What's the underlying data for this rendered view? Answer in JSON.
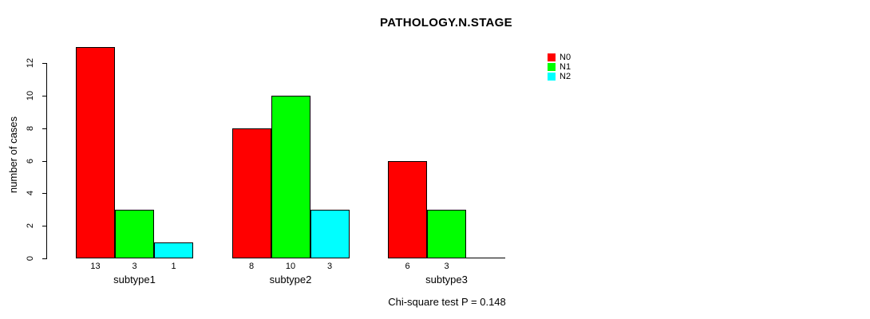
{
  "chart_data": {
    "type": "bar",
    "title": "PATHOLOGY.N.STAGE",
    "ylabel": "number of cases",
    "xlabel": "",
    "categories": [
      "subtype1",
      "subtype2",
      "subtype3"
    ],
    "series": [
      {
        "name": "N0",
        "color": "#ff0000",
        "values": [
          13,
          8,
          6
        ]
      },
      {
        "name": "N1",
        "color": "#00ff00",
        "values": [
          3,
          10,
          3
        ]
      },
      {
        "name": "N2",
        "color": "#00ffff",
        "values": [
          1,
          3,
          0
        ]
      }
    ],
    "bar_value_labels": [
      [
        "13",
        "3",
        "1"
      ],
      [
        "8",
        "10",
        "3"
      ],
      [
        "6",
        "3",
        ""
      ]
    ],
    "ylim": [
      0,
      12
    ],
    "yticks": [
      0,
      2,
      4,
      6,
      8,
      10,
      12
    ],
    "grid": false,
    "legend_position": "right",
    "legend_entries": [
      "N0",
      "N1",
      "N2"
    ],
    "annotation": "Chi-square test P = 0.148"
  }
}
